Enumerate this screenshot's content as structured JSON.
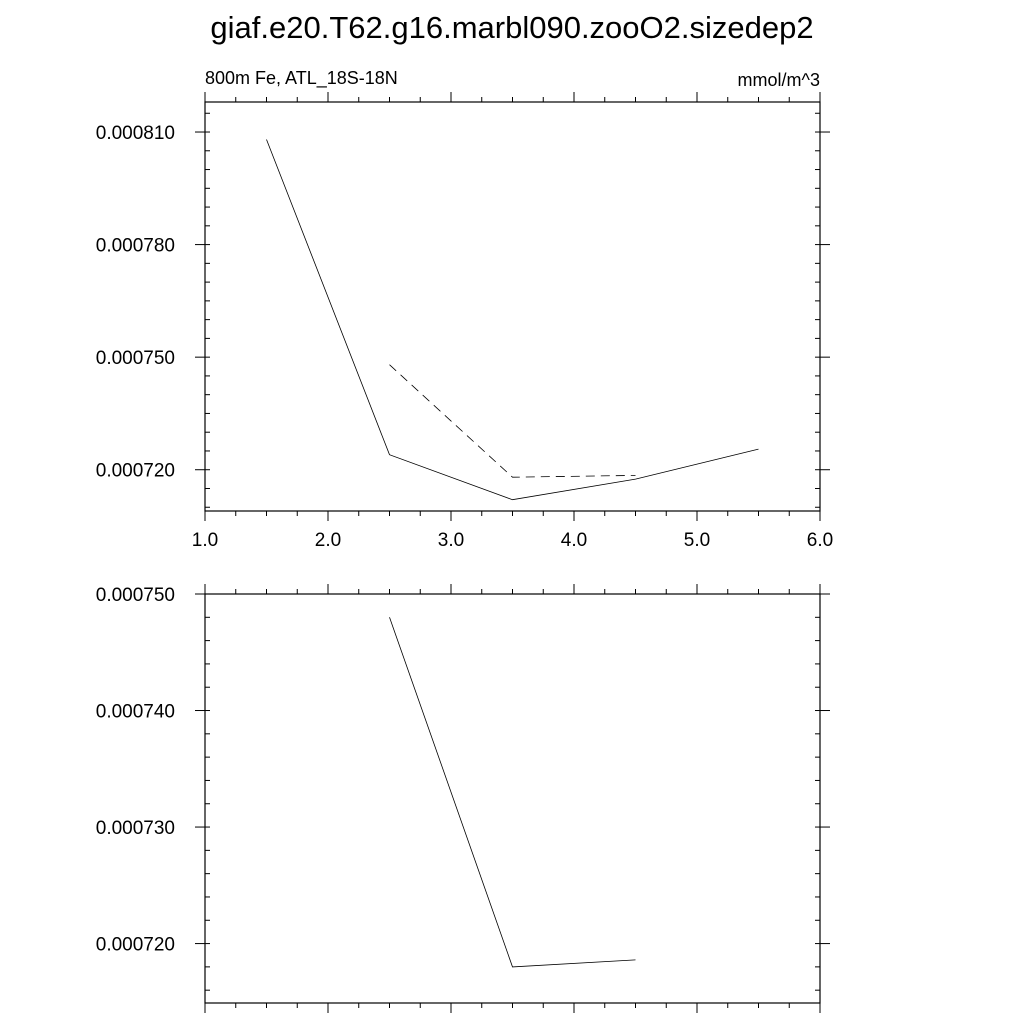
{
  "title": "giaf.e20.T62.g16.marbl090.zooO2.sizedep2",
  "subtitle_left": "800m Fe, ATL_18S-18N",
  "subtitle_right": "mmol/m^3",
  "chart_data": [
    {
      "type": "line",
      "title": "giaf.e20.T62.g16.marbl090.zooO2.sizedep2",
      "subtitle_left": "800m Fe, ATL_18S-18N",
      "subtitle_right": "mmol/m^3",
      "xlim": [
        1.0,
        6.0
      ],
      "ylim": [
        0.000709,
        0.000818
      ],
      "x_ticks": [
        {
          "v": 1.0,
          "label": "1.0"
        },
        {
          "v": 2.0,
          "label": "2.0"
        },
        {
          "v": 3.0,
          "label": "3.0"
        },
        {
          "v": 4.0,
          "label": "4.0"
        },
        {
          "v": 5.0,
          "label": "5.0"
        },
        {
          "v": 6.0,
          "label": "6.0"
        }
      ],
      "y_ticks": [
        {
          "v": 0.00072,
          "label": "0.000720"
        },
        {
          "v": 0.00075,
          "label": "0.000750"
        },
        {
          "v": 0.00078,
          "label": "0.000780"
        },
        {
          "v": 0.00081,
          "label": "0.000810"
        }
      ],
      "y_minor_step": 5e-06,
      "x_minor_step": 0.25,
      "grid": false,
      "series": [
        {
          "style": "solid",
          "points": [
            [
              1.5,
              0.000808
            ],
            [
              2.5,
              0.000724
            ],
            [
              3.5,
              0.000712
            ],
            [
              4.5,
              0.0007175
            ],
            [
              5.5,
              0.0007255
            ]
          ]
        },
        {
          "style": "dashed",
          "points": [
            [
              2.5,
              0.000748
            ],
            [
              3.5,
              0.000718
            ],
            [
              4.5,
              0.0007185
            ]
          ]
        }
      ]
    },
    {
      "type": "line",
      "xlim": [
        1.0,
        6.0
      ],
      "ylim": [
        0.0007149,
        0.00075
      ],
      "x_ticks": [
        {
          "v": 1.0,
          "label": ""
        },
        {
          "v": 2.0,
          "label": ""
        },
        {
          "v": 3.0,
          "label": ""
        },
        {
          "v": 4.0,
          "label": ""
        },
        {
          "v": 5.0,
          "label": ""
        },
        {
          "v": 6.0,
          "label": ""
        }
      ],
      "y_ticks": [
        {
          "v": 0.00072,
          "label": "0.000720"
        },
        {
          "v": 0.00073,
          "label": "0.000730"
        },
        {
          "v": 0.00074,
          "label": "0.000740"
        },
        {
          "v": 0.00075,
          "label": "0.000750"
        }
      ],
      "y_minor_step": 2e-06,
      "x_minor_step": 0.25,
      "grid": false,
      "series": [
        {
          "style": "solid",
          "points": [
            [
              2.5,
              0.000748
            ],
            [
              3.5,
              0.000718
            ],
            [
              4.5,
              0.0007186
            ]
          ]
        }
      ]
    }
  ]
}
